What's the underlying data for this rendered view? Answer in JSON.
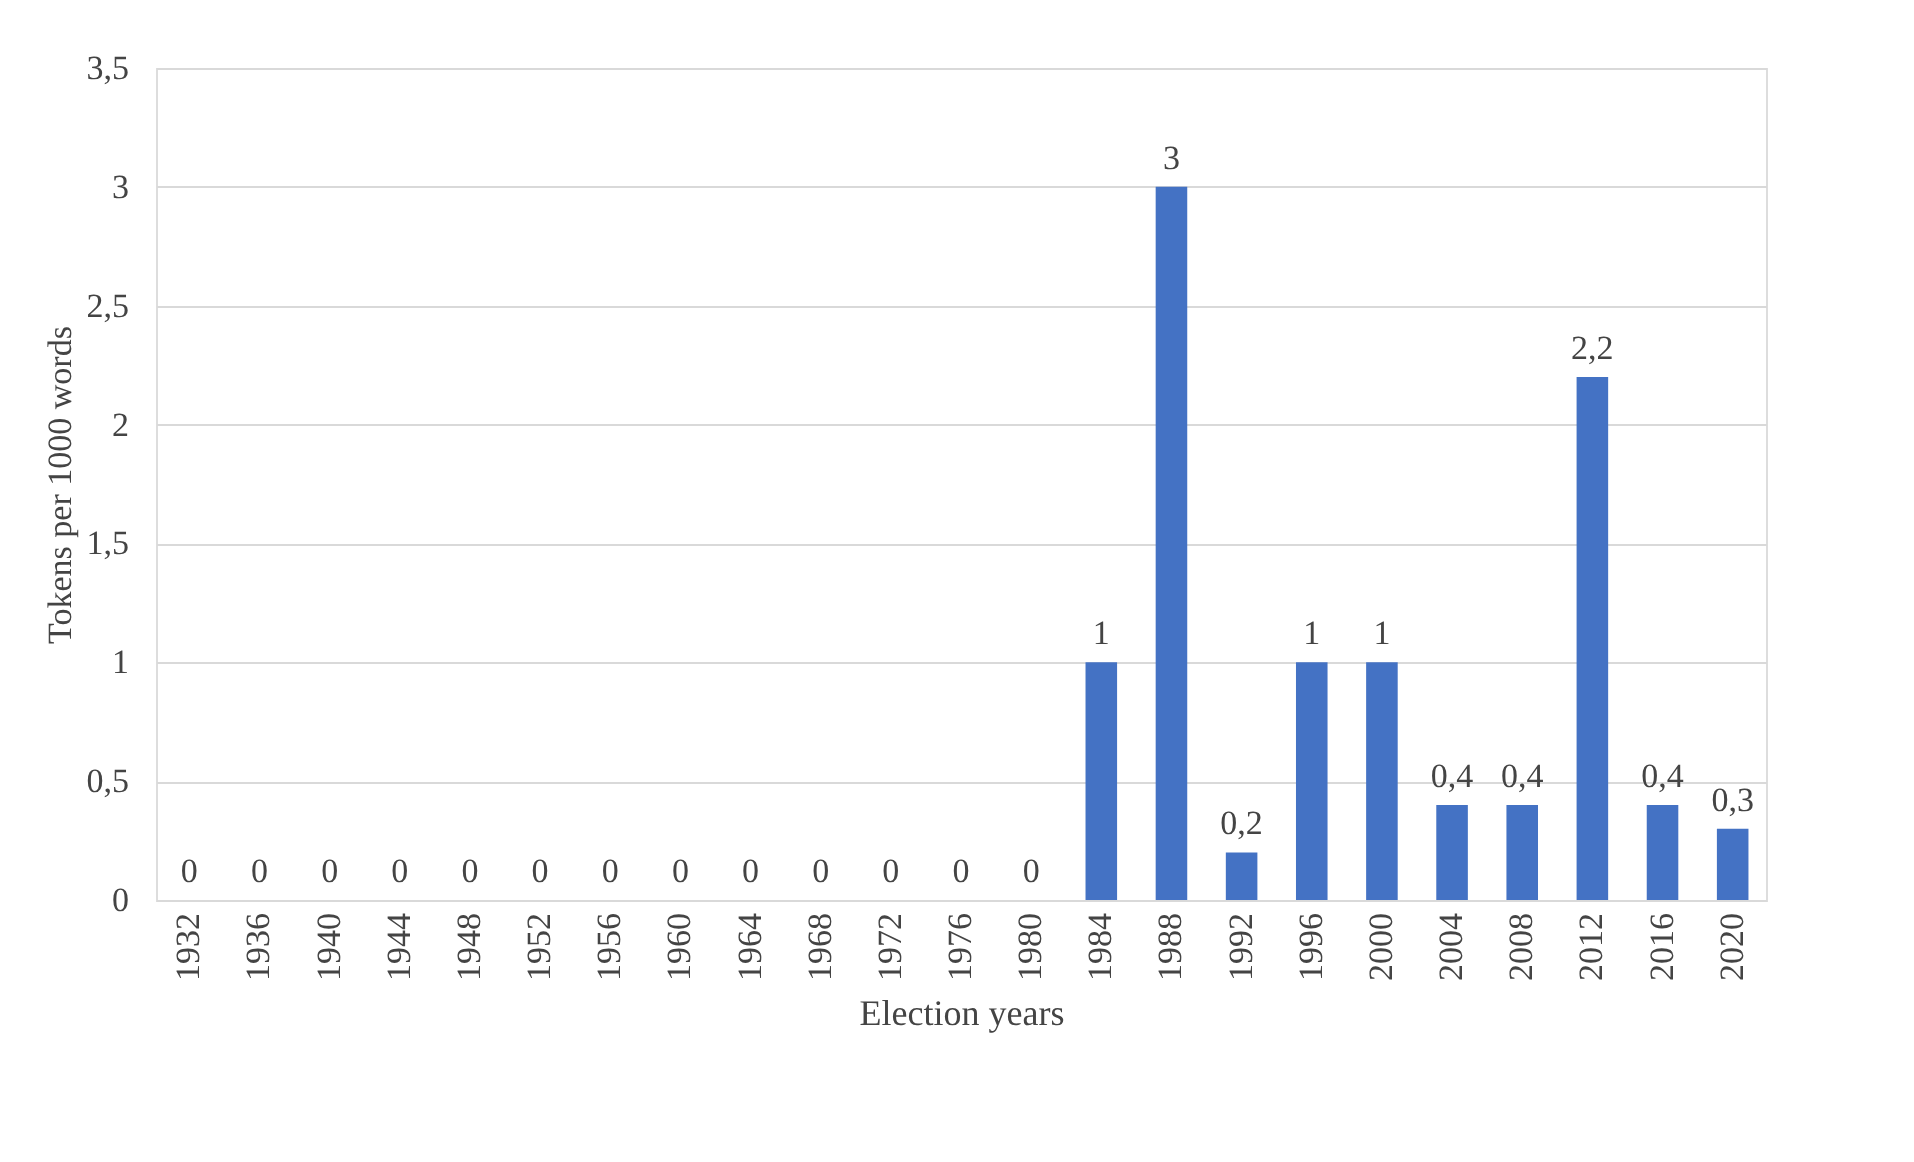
{
  "chart_data": {
    "type": "bar",
    "xlabel": "Election years",
    "ylabel": "Tokens per 1000 words",
    "categories": [
      "1932",
      "1936",
      "1940",
      "1944",
      "1948",
      "1952",
      "1956",
      "1960",
      "1964",
      "1968",
      "1972",
      "1976",
      "1980",
      "1984",
      "1988",
      "1992",
      "1996",
      "2000",
      "2004",
      "2008",
      "2012",
      "2016",
      "2020"
    ],
    "values": [
      0,
      0,
      0,
      0,
      0,
      0,
      0,
      0,
      0,
      0,
      0,
      0,
      0,
      1,
      3,
      0.2,
      1,
      1,
      0.4,
      0.4,
      2.2,
      0.4,
      0.3
    ],
    "value_labels": [
      "0",
      "0",
      "0",
      "0",
      "0",
      "0",
      "0",
      "0",
      "0",
      "0",
      "0",
      "0",
      "0",
      "1",
      "3",
      "0,2",
      "1",
      "1",
      "0,4",
      "0,4",
      "2,2",
      "0,4",
      "0,3"
    ],
    "color": "#4472c4",
    "ylim": [
      0,
      3.5
    ],
    "yticks": [
      0,
      {
        "value": 0.5,
        "label": "0,5"
      },
      1,
      {
        "value": 1.5,
        "label": "1,5"
      },
      2,
      {
        "value": 2.5,
        "label": "2,5"
      },
      3,
      {
        "value": 3.5,
        "label": "3,5"
      }
    ],
    "grid": "y"
  }
}
